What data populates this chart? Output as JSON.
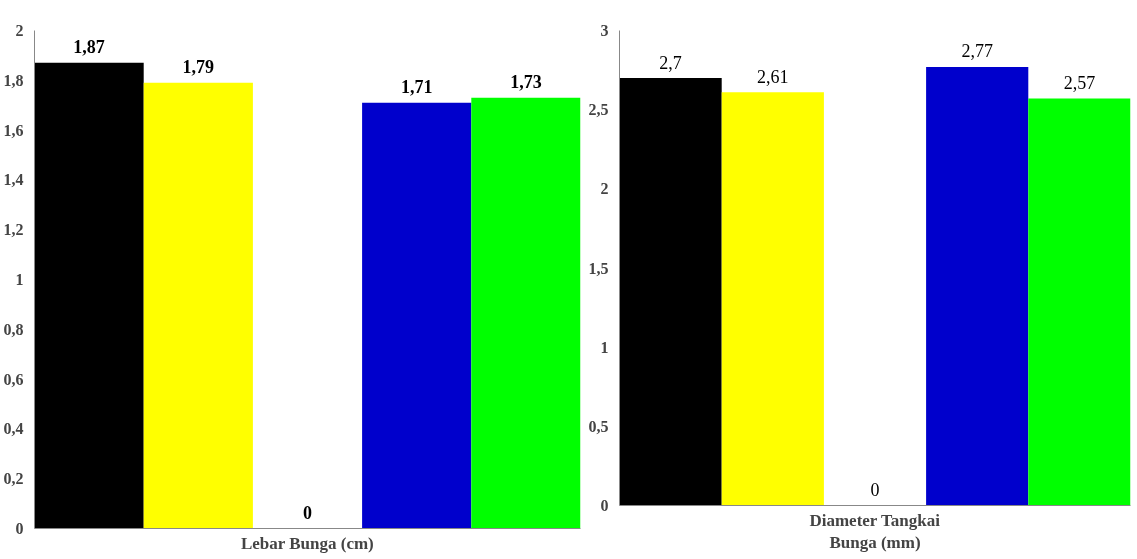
{
  "chart_data": [
    {
      "type": "bar",
      "xlabel": "Lebar Bunga (cm)",
      "categories": [
        null,
        null,
        null,
        null,
        null
      ],
      "values": [
        1.87,
        1.79,
        0,
        1.71,
        1.73
      ],
      "colors": [
        "#000000",
        "#ffff00",
        "#ffffff",
        "#0000cc",
        "#00ff00"
      ],
      "value_labels": [
        "1,87",
        "1,79",
        "0",
        "1,71",
        "1,73"
      ],
      "ylim": [
        0,
        2
      ],
      "yticks": [
        0,
        {
          "value": 0.2,
          "label": "0,2"
        },
        {
          "value": 0.4,
          "label": "0,4"
        },
        {
          "value": 0.6,
          "label": "0,6"
        },
        {
          "value": 0.8,
          "label": "0,8"
        },
        1,
        {
          "value": 1.2,
          "label": "1,2"
        },
        {
          "value": 1.4,
          "label": "1,4"
        },
        {
          "value": 1.6,
          "label": "1,6"
        },
        {
          "value": 1.8,
          "label": "1,8"
        },
        2
      ],
      "grid": false,
      "tick_labels": "y"
    },
    {
      "type": "bar",
      "xlabel": "Diameter Tangkai\nBunga (mm)",
      "categories": [
        null,
        null,
        null,
        null,
        null
      ],
      "values": [
        2.7,
        2.61,
        0,
        2.77,
        2.57
      ],
      "colors": [
        "#000000",
        "#ffff00",
        "#ffffff",
        "#0000cc",
        "#00ff00"
      ],
      "value_labels": [
        "2,7",
        "2,61",
        "0",
        "2,77",
        "2,57"
      ],
      "ylim": [
        0,
        3
      ],
      "yticks": [
        0,
        {
          "value": 0.5,
          "label": "0,5"
        },
        1,
        {
          "value": 1.5,
          "label": "1,5"
        },
        2,
        {
          "value": 2.5,
          "label": "2,5"
        },
        3
      ],
      "grid": false,
      "tick_labels": "y"
    }
  ]
}
